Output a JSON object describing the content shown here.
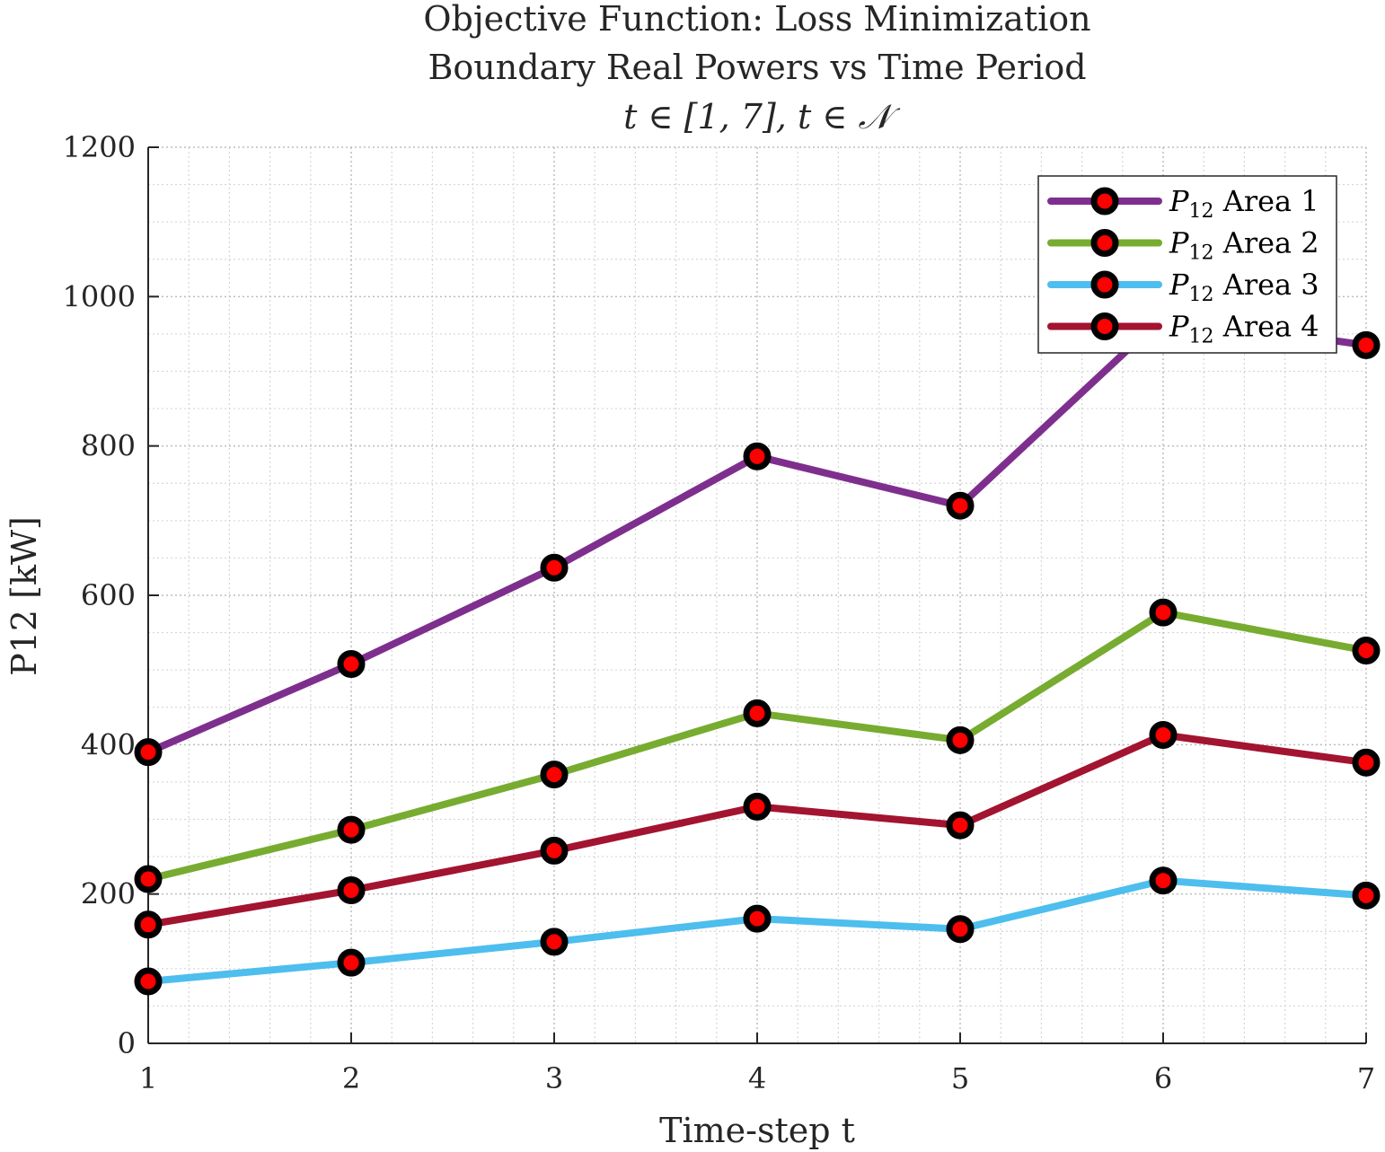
{
  "chart_data": {
    "type": "line",
    "title_lines": [
      "Objective Function: Loss Minimization",
      "Boundary Real Powers vs Time Period",
      "t ∈ [1, 7], t ∈ 𝒩"
    ],
    "xlabel": "Time-step t",
    "ylabel": "P12 [kW]",
    "x": [
      1,
      2,
      3,
      4,
      5,
      6,
      7
    ],
    "xlim": [
      1,
      7
    ],
    "ylim": [
      0,
      1200
    ],
    "xticks": [
      1,
      2,
      3,
      4,
      5,
      6,
      7
    ],
    "yticks": [
      0,
      200,
      400,
      600,
      800,
      1000,
      1200
    ],
    "grid": true,
    "minor_grid": true,
    "legend_position": "top-right",
    "marker": {
      "edge": "#000000",
      "face": "#ff0000"
    },
    "series": [
      {
        "name": "Area 1",
        "color": "#7e2f8e",
        "values": [
          390,
          508,
          637,
          786,
          720,
          973,
          935
        ]
      },
      {
        "name": "Area 2",
        "color": "#77ac30",
        "values": [
          220,
          286,
          360,
          442,
          406,
          577,
          526
        ]
      },
      {
        "name": "Area 3",
        "color": "#4dbeee",
        "values": [
          83,
          108,
          136,
          167,
          153,
          218,
          198
        ]
      },
      {
        "name": "Area 4",
        "color": "#a2142f",
        "values": [
          159,
          205,
          258,
          317,
          292,
          413,
          376
        ]
      }
    ]
  }
}
